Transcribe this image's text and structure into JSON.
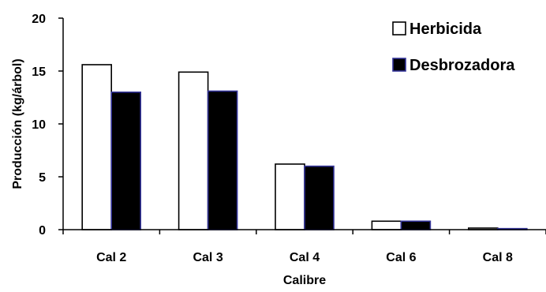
{
  "chart_data": {
    "type": "bar",
    "title": "",
    "xlabel": "Calibre",
    "ylabel": "Producción (kg/árbol)",
    "categories": [
      "Cal 2",
      "Cal 3",
      "Cal 4",
      "Cal 6",
      "Cal 8"
    ],
    "series": [
      {
        "name": "Herbicida",
        "values": [
          15.6,
          14.9,
          6.2,
          0.8,
          0.15
        ],
        "fill": "#ffffff",
        "stroke": "#000000"
      },
      {
        "name": "Desbrozadora",
        "values": [
          13.0,
          13.1,
          6.0,
          0.8,
          0.1
        ],
        "fill": "#000000",
        "stroke": "#333399"
      }
    ],
    "ylim": [
      0,
      20
    ],
    "yticks": [
      "0",
      "5",
      "10",
      "15",
      "20"
    ],
    "grid": false,
    "legend_position": "top-right"
  }
}
